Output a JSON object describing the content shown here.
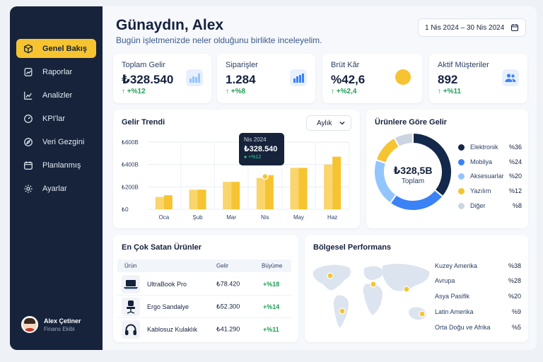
{
  "sidebar": {
    "items": [
      {
        "label": "Genel Bakış",
        "icon": "cube-icon",
        "active": true
      },
      {
        "label": "Raporlar",
        "icon": "report-icon"
      },
      {
        "label": "Analizler",
        "icon": "analytics-icon"
      },
      {
        "label": "KPI'lar",
        "icon": "gauge-icon"
      },
      {
        "label": "Veri Gezgini",
        "icon": "compass-icon"
      },
      {
        "label": "Planlanmış",
        "icon": "calendar-icon"
      },
      {
        "label": "Ayarlar",
        "icon": "gear-icon"
      }
    ],
    "user": {
      "name": "Alex Çetiner",
      "role": "Finans Ekibi"
    }
  },
  "header": {
    "greeting": "Günaydın, Alex",
    "subtitle": "Bugün işletmenizde neler olduğunu birlikte inceleyelim.",
    "date_range": "1 Nis 2024 – 30 Nis 2024"
  },
  "kpis": [
    {
      "label": "Toplam Gelir",
      "value": "₺328.540",
      "delta": "↑ +%12",
      "icon": "bar-chart-icon"
    },
    {
      "label": "Siparişler",
      "value": "1.284",
      "delta": "↑ +%8",
      "icon": "bar-chart-icon"
    },
    {
      "label": "Brüt Kâr",
      "value": "%42,6",
      "delta": "↑ +%2,4",
      "icon": "coin-icon"
    },
    {
      "label": "Aktif Müşteriler",
      "value": "892",
      "delta": "↑ +%11",
      "icon": "users-icon"
    }
  ],
  "trend": {
    "title": "Gelir Trendi",
    "period": "Aylık",
    "tooltip": {
      "month": "Nis 2024",
      "value": "₺328.540",
      "delta": "● +%12"
    }
  },
  "chart_data": {
    "type": "bar",
    "title": "Gelir Trendi",
    "categories": [
      "Oca",
      "Şub",
      "Mar",
      "Nis",
      "May",
      "Haz"
    ],
    "y_ticks": [
      "₺600B",
      "₺400B",
      "₺200B",
      "₺0"
    ],
    "ylim": [
      0,
      600
    ],
    "series": [
      {
        "values": [
          110,
          175,
          245,
          280,
          370,
          400
        ],
        "color": "#f9d56b"
      },
      {
        "values": [
          125,
          175,
          245,
          305,
          370,
          470
        ],
        "color": "#f6c431"
      }
    ],
    "grid": true
  },
  "products_chart": {
    "title": "Ürünlere Göre Gelir",
    "center_value": "₺328,5B",
    "center_label": "Toplam",
    "segments": [
      {
        "label": "Elektronik",
        "pct": "%36",
        "value": 36,
        "color": "#13284a"
      },
      {
        "label": "Mobilya",
        "pct": "%24",
        "value": 24,
        "color": "#3b82f6"
      },
      {
        "label": "Aksesuarlar",
        "pct": "%20",
        "value": 20,
        "color": "#93c5fd"
      },
      {
        "label": "Yazılım",
        "pct": "%12",
        "value": 12,
        "color": "#f6c431"
      },
      {
        "label": "Diğer",
        "pct": "%8",
        "value": 8,
        "color": "#cbd5e1"
      }
    ]
  },
  "top_products": {
    "title": "En Çok Satan Ürünler",
    "columns": [
      "Ürün",
      "Gelir",
      "Büyüme"
    ],
    "rows": [
      {
        "name": "UltraBook Pro",
        "revenue": "₺78.420",
        "growth": "+%18",
        "icon": "laptop-icon"
      },
      {
        "name": "Ergo Sandalye",
        "revenue": "₺52.300",
        "growth": "+%14",
        "icon": "chair-icon"
      },
      {
        "name": "Kablosuz Kulaklık",
        "revenue": "₺41.290",
        "growth": "+%11",
        "icon": "headphones-icon"
      }
    ]
  },
  "regions": {
    "title": "Bölgesel Performans",
    "rows": [
      {
        "name": "Kuzey Amerika",
        "pct": "%38"
      },
      {
        "name": "Avrupa",
        "pct": "%28"
      },
      {
        "name": "Asya Pasifik",
        "pct": "%20"
      },
      {
        "name": "Latin Amerika",
        "pct": "%9"
      },
      {
        "name": "Orta Doğu ve Afrika",
        "pct": "%5"
      }
    ]
  }
}
